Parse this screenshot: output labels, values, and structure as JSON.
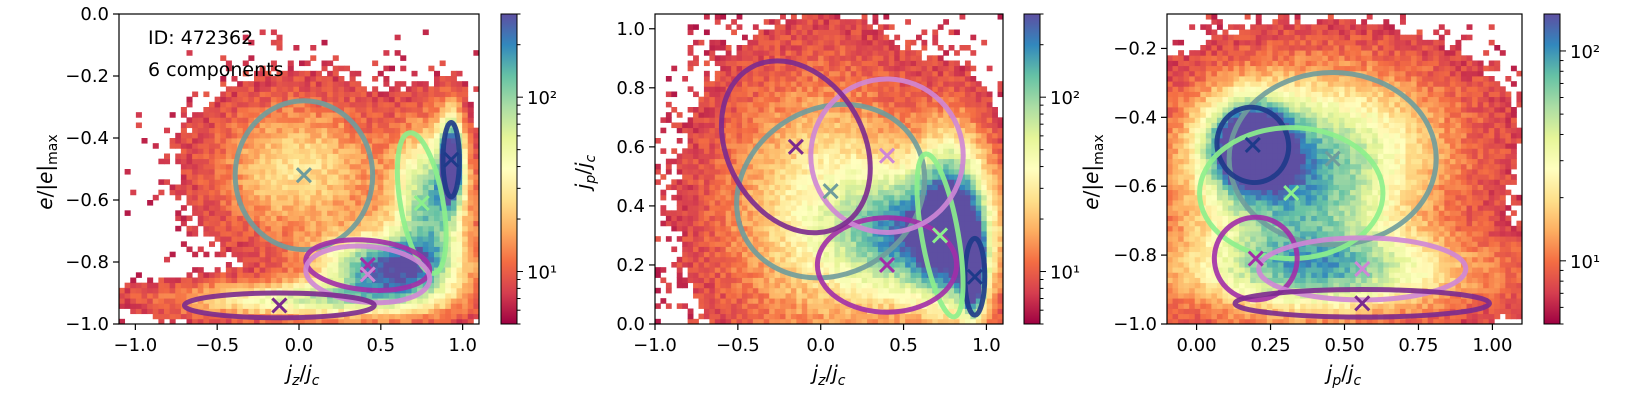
{
  "figure": {
    "id_annotation": "ID: 472362",
    "components_annotation": "6 components"
  },
  "chart_data": [
    {
      "type": "heatmap",
      "panel": "left",
      "xlabel": "j_z/j_c",
      "ylabel": "e/|e|_max",
      "xlim": [
        -1.1,
        1.1
      ],
      "ylim": [
        -1.0,
        0.0
      ],
      "xticks": [
        {
          "value": -1.0,
          "label": "−1.0"
        },
        {
          "value": -0.5,
          "label": "−0.5"
        },
        {
          "value": 0.0,
          "label": "0.0"
        },
        {
          "value": 0.5,
          "label": "0.5"
        },
        {
          "value": 1.0,
          "label": "1.0"
        }
      ],
      "yticks": [
        {
          "value": -1.0,
          "label": "−1.0"
        },
        {
          "value": -0.8,
          "label": "−0.8"
        },
        {
          "value": -0.6,
          "label": "−0.6"
        },
        {
          "value": -0.4,
          "label": "−0.4"
        },
        {
          "value": -0.2,
          "label": "−0.2"
        },
        {
          "value": 0.0,
          "label": "0.0"
        }
      ],
      "colorbar": {
        "scale": "log",
        "range": [
          5,
          300
        ],
        "ticks": [
          {
            "value": 10,
            "label": "10¹"
          },
          {
            "value": 100,
            "label": "10²"
          }
        ]
      },
      "density_blobs": [
        {
          "cx": 0.0,
          "cy": -0.5,
          "sx": 0.35,
          "sy": 0.15,
          "w": 0.35
        },
        {
          "cx": 0.0,
          "cy": -0.92,
          "sx": 0.5,
          "sy": 0.04,
          "w": 0.5
        },
        {
          "cx": 0.55,
          "cy": -0.82,
          "sx": 0.28,
          "sy": 0.08,
          "w": 0.9
        },
        {
          "cx": 0.8,
          "cy": -0.6,
          "sx": 0.15,
          "sy": 0.15,
          "w": 0.7
        },
        {
          "cx": 0.93,
          "cy": -0.47,
          "sx": 0.05,
          "sy": 0.1,
          "w": 1.0
        }
      ],
      "components": [
        {
          "name": "component-1",
          "color": "#6f9c9c",
          "cx": 0.03,
          "cy": -0.52,
          "rx": 0.42,
          "ry": 0.24,
          "angle": 0
        },
        {
          "name": "component-2",
          "color": "#1e3a8a",
          "cx": 0.93,
          "cy": -0.47,
          "rx": 0.05,
          "ry": 0.12,
          "angle": 0
        },
        {
          "name": "component-3",
          "color": "#8cf08c",
          "cx": 0.75,
          "cy": -0.61,
          "rx": 0.13,
          "ry": 0.23,
          "angle": 10
        },
        {
          "name": "component-4",
          "color": "#a22ea8",
          "cx": 0.42,
          "cy": -0.81,
          "rx": 0.38,
          "ry": 0.08,
          "angle": -5
        },
        {
          "name": "component-5",
          "color": "#cf86d6",
          "cx": 0.42,
          "cy": -0.84,
          "rx": 0.38,
          "ry": 0.09,
          "angle": -5
        },
        {
          "name": "component-6",
          "color": "#7b2a8f",
          "cx": -0.12,
          "cy": -0.94,
          "rx": 0.58,
          "ry": 0.04,
          "angle": 0
        }
      ]
    },
    {
      "type": "heatmap",
      "panel": "middle",
      "xlabel": "j_z/j_c",
      "ylabel": "j_p/j_c",
      "xlim": [
        -1.0,
        1.1
      ],
      "ylim": [
        0.0,
        1.05
      ],
      "xticks": [
        {
          "value": -1.0,
          "label": "−1.0"
        },
        {
          "value": -0.5,
          "label": "−0.5"
        },
        {
          "value": 0.0,
          "label": "0.0"
        },
        {
          "value": 0.5,
          "label": "0.5"
        },
        {
          "value": 1.0,
          "label": "1.0"
        }
      ],
      "yticks": [
        {
          "value": 0.0,
          "label": "0.0"
        },
        {
          "value": 0.2,
          "label": "0.2"
        },
        {
          "value": 0.4,
          "label": "0.4"
        },
        {
          "value": 0.6,
          "label": "0.6"
        },
        {
          "value": 0.8,
          "label": "0.8"
        },
        {
          "value": 1.0,
          "label": "1.0"
        }
      ],
      "colorbar": {
        "scale": "log",
        "range": [
          5,
          300
        ],
        "ticks": [
          {
            "value": 10,
            "label": "10¹"
          },
          {
            "value": 100,
            "label": "10²"
          }
        ]
      },
      "density_blobs": [
        {
          "cx": 0.0,
          "cy": 0.4,
          "sx": 0.4,
          "sy": 0.3,
          "w": 0.4
        },
        {
          "cx": 0.55,
          "cy": 0.3,
          "sx": 0.3,
          "sy": 0.15,
          "w": 0.7
        },
        {
          "cx": 0.8,
          "cy": 0.35,
          "sx": 0.15,
          "sy": 0.2,
          "w": 0.8
        },
        {
          "cx": 0.92,
          "cy": 0.17,
          "sx": 0.05,
          "sy": 0.1,
          "w": 1.0
        }
      ],
      "components": [
        {
          "name": "component-1",
          "color": "#6f9c9c",
          "cx": 0.06,
          "cy": 0.45,
          "rx": 0.5,
          "ry": 0.33,
          "angle": -60
        },
        {
          "name": "component-2",
          "color": "#1e3a8a",
          "cx": 0.93,
          "cy": 0.16,
          "rx": 0.06,
          "ry": 0.13,
          "angle": 0
        },
        {
          "name": "component-3",
          "color": "#8cf08c",
          "cx": 0.72,
          "cy": 0.3,
          "rx": 0.11,
          "ry": 0.28,
          "angle": 10
        },
        {
          "name": "component-4",
          "color": "#a22ea8",
          "cx": 0.4,
          "cy": 0.2,
          "rx": 0.42,
          "ry": 0.16,
          "angle": 0
        },
        {
          "name": "component-5",
          "color": "#cf86d6",
          "cx": 0.4,
          "cy": 0.57,
          "rx": 0.46,
          "ry": 0.26,
          "angle": 0
        },
        {
          "name": "component-6",
          "color": "#7b2a8f",
          "cx": -0.15,
          "cy": 0.6,
          "rx": 0.55,
          "ry": 0.23,
          "angle": 120
        }
      ]
    },
    {
      "type": "heatmap",
      "panel": "right",
      "xlabel": "j_p/j_c",
      "ylabel": "e/|e|_max",
      "xlim": [
        -0.1,
        1.1
      ],
      "ylim": [
        -1.0,
        -0.1
      ],
      "xticks": [
        {
          "value": 0.0,
          "label": "0.00"
        },
        {
          "value": 0.25,
          "label": "0.25"
        },
        {
          "value": 0.5,
          "label": "0.50"
        },
        {
          "value": 0.75,
          "label": "0.75"
        },
        {
          "value": 1.0,
          "label": "1.00"
        }
      ],
      "yticks": [
        {
          "value": -1.0,
          "label": "−1.0"
        },
        {
          "value": -0.8,
          "label": "−0.8"
        },
        {
          "value": -0.6,
          "label": "−0.6"
        },
        {
          "value": -0.4,
          "label": "−0.4"
        },
        {
          "value": -0.2,
          "label": "−0.2"
        }
      ],
      "colorbar": {
        "scale": "log",
        "range": [
          5,
          150
        ],
        "ticks": [
          {
            "value": 10,
            "label": "10¹"
          },
          {
            "value": 100,
            "label": "10²"
          }
        ]
      },
      "density_blobs": [
        {
          "cx": 0.18,
          "cy": -0.48,
          "sx": 0.1,
          "sy": 0.09,
          "w": 1.0
        },
        {
          "cx": 0.35,
          "cy": -0.65,
          "sx": 0.25,
          "sy": 0.18,
          "w": 0.6
        },
        {
          "cx": 0.45,
          "cy": -0.85,
          "sx": 0.35,
          "sy": 0.08,
          "w": 0.5
        },
        {
          "cx": 0.45,
          "cy": -0.45,
          "sx": 0.3,
          "sy": 0.15,
          "w": 0.35
        }
      ],
      "components": [
        {
          "name": "component-1",
          "color": "#6f9c9c",
          "cx": 0.46,
          "cy": -0.52,
          "rx": 0.35,
          "ry": 0.25,
          "angle": 0
        },
        {
          "name": "component-2",
          "color": "#1e3a8a",
          "cx": 0.19,
          "cy": -0.48,
          "rx": 0.12,
          "ry": 0.11,
          "angle": 20
        },
        {
          "name": "component-3",
          "color": "#8cf08c",
          "cx": 0.32,
          "cy": -0.62,
          "rx": 0.31,
          "ry": 0.19,
          "angle": 0
        },
        {
          "name": "component-4",
          "color": "#a22ea8",
          "cx": 0.2,
          "cy": -0.81,
          "rx": 0.14,
          "ry": 0.12,
          "angle": 0
        },
        {
          "name": "component-5",
          "color": "#cf86d6",
          "cx": 0.56,
          "cy": -0.84,
          "rx": 0.35,
          "ry": 0.09,
          "angle": 0
        },
        {
          "name": "component-6",
          "color": "#7b2a8f",
          "cx": 0.56,
          "cy": -0.94,
          "rx": 0.43,
          "ry": 0.04,
          "angle": 0
        }
      ]
    }
  ]
}
